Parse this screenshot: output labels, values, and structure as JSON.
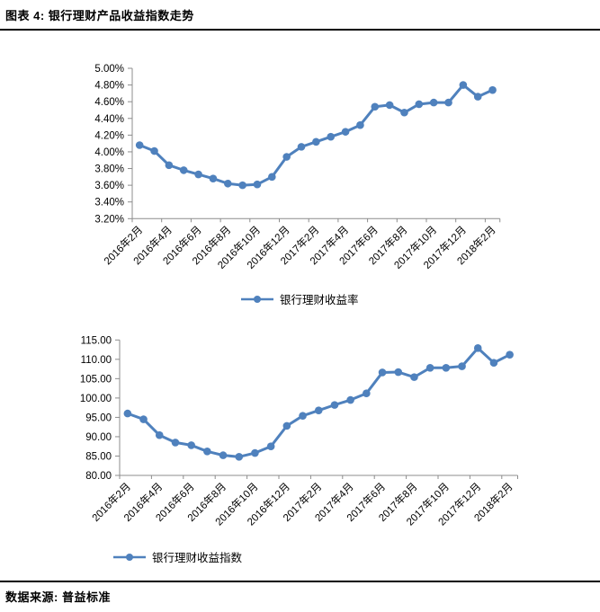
{
  "header": {
    "title": "图表 4: 银行理财产品收益指数走势"
  },
  "footer": {
    "label": "数据来源:",
    "source": "普益标准"
  },
  "chart_data": [
    {
      "type": "line",
      "name": "bank-wmp-yield-rate",
      "legend": "银行理财收益率",
      "color": "#4F81BD",
      "xlabel": "",
      "ylabel": "",
      "ylim": [
        3.2,
        5.0
      ],
      "y_ticks": [
        "3.20%",
        "3.40%",
        "3.60%",
        "3.80%",
        "4.00%",
        "4.20%",
        "4.40%",
        "4.60%",
        "4.80%",
        "5.00%"
      ],
      "x_tick_labels": [
        "2016年2月",
        "2016年4月",
        "2016年6月",
        "2016年8月",
        "2016年10月",
        "2016年12月",
        "2017年2月",
        "2017年4月",
        "2017年6月",
        "2017年8月",
        "2017年10月",
        "2017年12月",
        "2018年2月"
      ],
      "x": [
        "2016年2月",
        "2016年3月",
        "2016年4月",
        "2016年5月",
        "2016年6月",
        "2016年7月",
        "2016年8月",
        "2016年9月",
        "2016年10月",
        "2016年11月",
        "2016年12月",
        "2017年1月",
        "2017年2月",
        "2017年3月",
        "2017年4月",
        "2017年5月",
        "2017年6月",
        "2017年7月",
        "2017年8月",
        "2017年9月",
        "2017年10月",
        "2017年11月",
        "2017年12月",
        "2018年1月",
        "2018年2月"
      ],
      "values": [
        4.08,
        4.01,
        3.84,
        3.78,
        3.73,
        3.68,
        3.62,
        3.6,
        3.61,
        3.7,
        3.94,
        4.06,
        4.12,
        4.18,
        4.24,
        4.32,
        4.54,
        4.56,
        4.47,
        4.57,
        4.59,
        4.59,
        4.8,
        4.66,
        4.74
      ],
      "grid": false,
      "legend_position": "bottom-center"
    },
    {
      "type": "line",
      "name": "bank-wmp-yield-index",
      "legend": "银行理财收益指数",
      "color": "#4F81BD",
      "xlabel": "",
      "ylabel": "",
      "ylim": [
        80,
        115
      ],
      "y_ticks": [
        "80.00",
        "85.00",
        "90.00",
        "95.00",
        "100.00",
        "105.00",
        "110.00",
        "115.00"
      ],
      "x_tick_labels": [
        "2016年2月",
        "2016年4月",
        "2016年6月",
        "2016年8月",
        "2016年10月",
        "2016年12月",
        "2017年2月",
        "2017年4月",
        "2017年6月",
        "2017年8月",
        "2017年10月",
        "2017年12月",
        "2018年2月"
      ],
      "x": [
        "2016年2月",
        "2016年3月",
        "2016年4月",
        "2016年5月",
        "2016年6月",
        "2016年7月",
        "2016年8月",
        "2016年9月",
        "2016年10月",
        "2016年11月",
        "2016年12月",
        "2017年1月",
        "2017年2月",
        "2017年3月",
        "2017年4月",
        "2017年5月",
        "2017年6月",
        "2017年7月",
        "2017年8月",
        "2017年9月",
        "2017年10月",
        "2017年11月",
        "2017年12月",
        "2018年1月",
        "2018年2月"
      ],
      "values": [
        96.0,
        94.5,
        90.4,
        88.5,
        87.8,
        86.2,
        85.2,
        84.8,
        85.8,
        87.5,
        92.8,
        95.4,
        96.8,
        98.2,
        99.5,
        101.2,
        106.6,
        106.7,
        105.4,
        107.8,
        107.8,
        108.2,
        112.9,
        109.1,
        111.2
      ],
      "grid": false,
      "legend_position": "bottom-left"
    }
  ]
}
